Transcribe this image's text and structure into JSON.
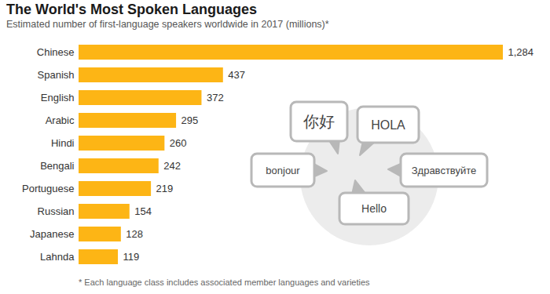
{
  "chart_data": {
    "type": "bar",
    "title": "The World's Most Spoken Languages",
    "subtitle": "Estimated number of first-language speakers worldwide in 2017 (millions)*",
    "categories": [
      "Chinese",
      "Spanish",
      "English",
      "Arabic",
      "Hindi",
      "Bengali",
      "Portuguese",
      "Russian",
      "Japanese",
      "Lahnda"
    ],
    "values": [
      1284,
      437,
      372,
      295,
      260,
      242,
      219,
      154,
      128,
      119
    ],
    "value_labels": [
      "1,284",
      "437",
      "372",
      "295",
      "260",
      "242",
      "219",
      "154",
      "128",
      "119"
    ],
    "color": "#fdb515",
    "orientation": "horizontal",
    "data_labels": true,
    "tick_labels": "y",
    "grid": false,
    "xlim": [
      0,
      1284
    ],
    "annotations": [
      "你好",
      "HOLA",
      "bonjour",
      "Здравствуйте",
      "Hello"
    ],
    "caption": "* Each language class includes associated member languages and varieties"
  }
}
